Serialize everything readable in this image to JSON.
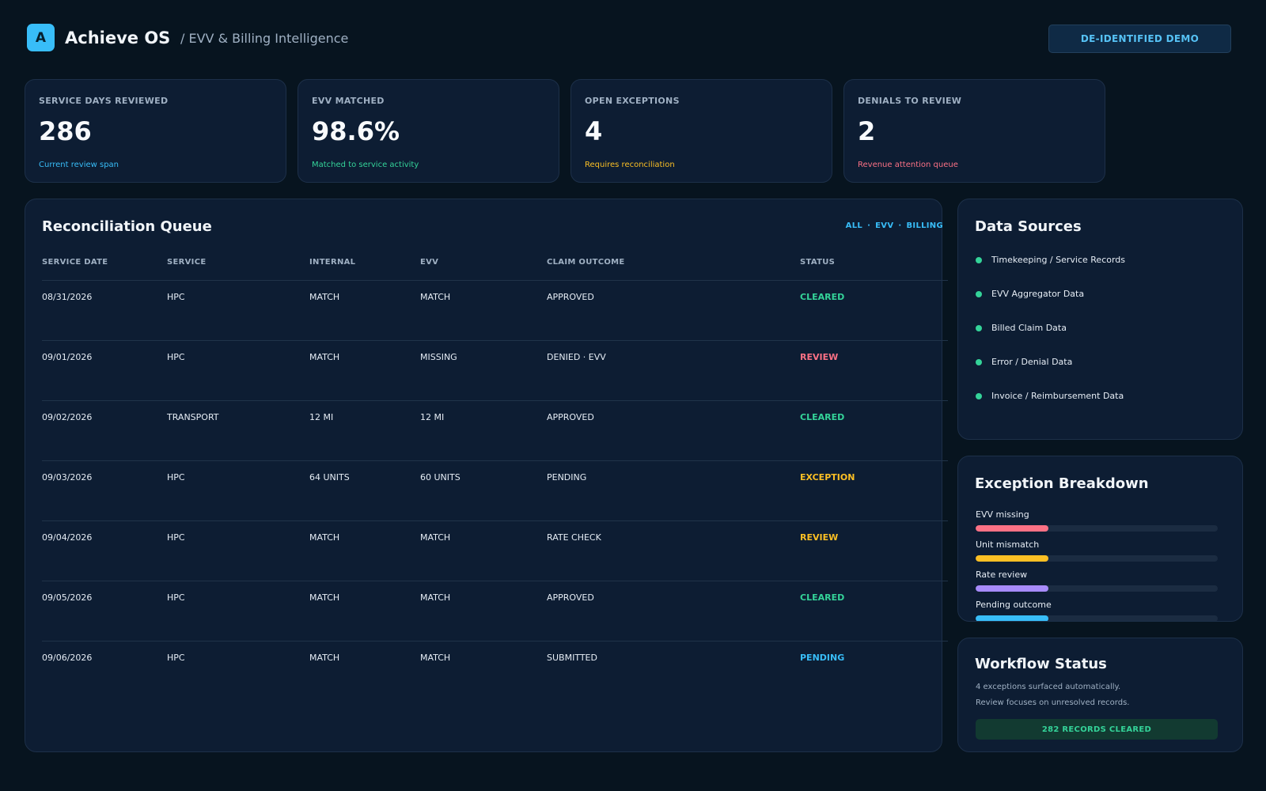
{
  "header": {
    "logo_letter": "A",
    "app_title": "Achieve OS",
    "app_subtitle": "/ EVV & Billing Intelligence",
    "badge": "DE-IDENTIFIED DEMO"
  },
  "kpis": [
    {
      "label": "SERVICE DAYS REVIEWED",
      "value": "286",
      "note": "Current review span",
      "note_color": "#38bdf8"
    },
    {
      "label": "EVV MATCHED",
      "value": "98.6%",
      "note": "Matched to service activity",
      "note_color": "#34d399"
    },
    {
      "label": "OPEN EXCEPTIONS",
      "value": "4",
      "note": "Requires reconciliation",
      "note_color": "#fbbf24"
    },
    {
      "label": "DENIALS TO REVIEW",
      "value": "2",
      "note": "Revenue attention queue",
      "note_color": "#fb7185"
    }
  ],
  "queue": {
    "title": "Reconciliation Queue",
    "filters": [
      "ALL",
      "EVV",
      "BILLING"
    ],
    "columns": [
      "SERVICE DATE",
      "SERVICE",
      "INTERNAL",
      "EVV",
      "CLAIM OUTCOME",
      "STATUS"
    ],
    "rows": [
      {
        "date": "08/31/2026",
        "service": "HPC",
        "internal": "MATCH",
        "evv": "MATCH",
        "outcome": "APPROVED",
        "status": "CLEARED",
        "status_color": "#34d399"
      },
      {
        "date": "09/01/2026",
        "service": "HPC",
        "internal": "MATCH",
        "evv": "MISSING",
        "outcome": "DENIED · EVV",
        "status": "REVIEW",
        "status_color": "#fb7185"
      },
      {
        "date": "09/02/2026",
        "service": "TRANSPORT",
        "internal": "12 MI",
        "evv": "12 MI",
        "outcome": "APPROVED",
        "status": "CLEARED",
        "status_color": "#34d399"
      },
      {
        "date": "09/03/2026",
        "service": "HPC",
        "internal": "64 UNITS",
        "evv": "60 UNITS",
        "outcome": "PENDING",
        "status": "EXCEPTION",
        "status_color": "#fbbf24"
      },
      {
        "date": "09/04/2026",
        "service": "HPC",
        "internal": "MATCH",
        "evv": "MATCH",
        "outcome": "RATE CHECK",
        "status": "REVIEW",
        "status_color": "#fbbf24"
      },
      {
        "date": "09/05/2026",
        "service": "HPC",
        "internal": "MATCH",
        "evv": "MATCH",
        "outcome": "APPROVED",
        "status": "CLEARED",
        "status_color": "#34d399"
      },
      {
        "date": "09/06/2026",
        "service": "HPC",
        "internal": "MATCH",
        "evv": "MATCH",
        "outcome": "SUBMITTED",
        "status": "PENDING",
        "status_color": "#38bdf8"
      }
    ]
  },
  "data_sources": {
    "title": "Data Sources",
    "items": [
      "Timekeeping / Service Records",
      "EVV Aggregator Data",
      "Billed Claim Data",
      "Error / Denial Data",
      "Invoice / Reimbursement Data"
    ],
    "dot_color": "#34d399"
  },
  "exception_breakdown": {
    "title": "Exception Breakdown",
    "items": [
      {
        "label": "EVV missing",
        "fraction": 0.3,
        "color": "#fb7185"
      },
      {
        "label": "Unit mismatch",
        "fraction": 0.3,
        "color": "#fbbf24"
      },
      {
        "label": "Rate review",
        "fraction": 0.3,
        "color": "#a78bfa"
      },
      {
        "label": "Pending outcome",
        "fraction": 0.3,
        "color": "#38bdf8"
      }
    ]
  },
  "workflow": {
    "title": "Workflow Status",
    "line1": "4 exceptions surfaced automatically.",
    "line2": "Review focuses on unresolved records.",
    "cleared_label": "282 RECORDS CLEARED"
  }
}
